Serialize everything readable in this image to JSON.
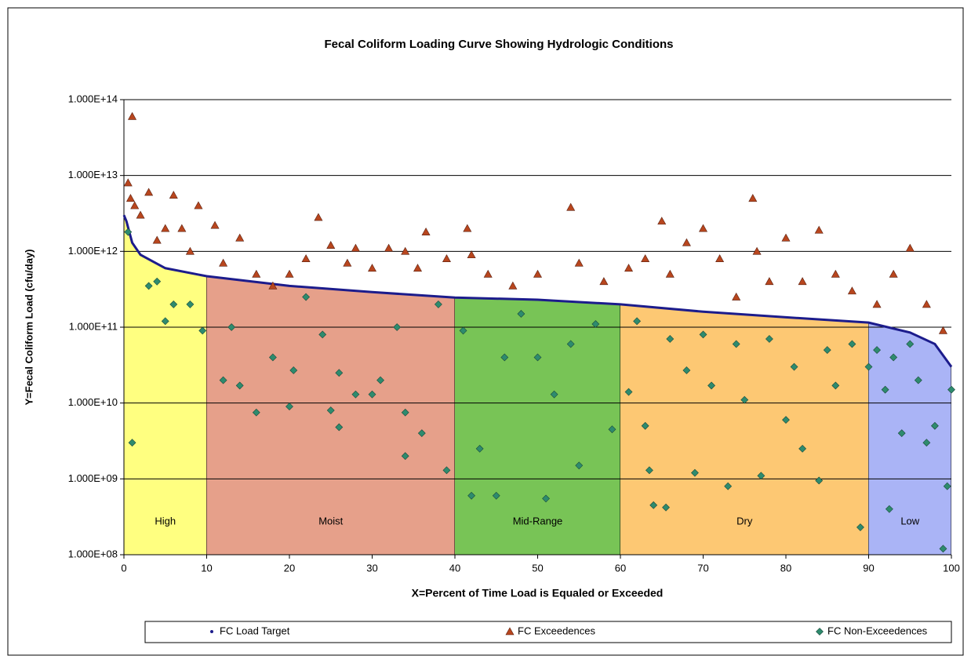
{
  "chart_data": {
    "type": "scatter",
    "title": "Fecal Coliform Loading Curve Showing Hydrologic Conditions",
    "x_label": "X=Percent of Time Load is Equaled or Exceeded",
    "y_label": "Y=Fecal Coliform Load (cfu/day)",
    "log_y": true,
    "grid": true,
    "legend": "bottom",
    "xlim": [
      0,
      100
    ],
    "ylim": [
      100000000.0,
      100000000000000.0
    ],
    "xticks": [
      0,
      10,
      20,
      30,
      40,
      50,
      60,
      70,
      80,
      90,
      100
    ],
    "yticks": [
      {
        "value": 100000000.0,
        "label": "1.000E+08"
      },
      {
        "value": 1000000000.0,
        "label": "1.000E+09"
      },
      {
        "value": 10000000000.0,
        "label": "1.000E+10"
      },
      {
        "value": 100000000000.0,
        "label": "1.000E+11"
      },
      {
        "value": 1000000000000.0,
        "label": "1.000E+12"
      },
      {
        "value": 10000000000000.0,
        "label": "1.000E+13"
      },
      {
        "value": 100000000000000.0,
        "label": "1.000E+14"
      }
    ],
    "regions": [
      {
        "label": "High",
        "x": [
          0,
          10
        ],
        "color": "#ffff80"
      },
      {
        "label": "Moist",
        "x": [
          10,
          40
        ],
        "color": "#e6a08a"
      },
      {
        "label": "Mid-Range",
        "x": [
          40,
          60
        ],
        "color": "#78c456"
      },
      {
        "label": "Dry",
        "x": [
          60,
          90
        ],
        "color": "#fdc873"
      },
      {
        "label": "Low",
        "x": [
          90,
          100
        ],
        "color": "#aab4f6"
      }
    ],
    "series": [
      {
        "name": "FC Load Target",
        "color": "#1c1c8c",
        "marker": "line",
        "x": [
          0,
          0.3,
          1,
          2,
          5,
          10,
          20,
          30,
          40,
          50,
          60,
          70,
          80,
          90,
          95,
          98,
          100
        ],
        "values": [
          3000000000000.0,
          2500000000000.0,
          1300000000000.0,
          900000000000.0,
          600000000000.0,
          470000000000.0,
          350000000000.0,
          290000000000.0,
          246000000000.0,
          230000000000.0,
          200000000000.0,
          160000000000.0,
          135000000000.0,
          115000000000.0,
          85000000000.0,
          60000000000.0,
          30000000000.0
        ]
      },
      {
        "name": "FC Exceedences",
        "color": "#b8461e",
        "marker": "triangle",
        "x": [
          0.5,
          0.8,
          1,
          1.3,
          2,
          3,
          4,
          5,
          6,
          7,
          8,
          9,
          11,
          12,
          14,
          16,
          18,
          20,
          22,
          23.5,
          25,
          27,
          28,
          30,
          32,
          34,
          35.5,
          36.5,
          39,
          41.5,
          42,
          44,
          47,
          50,
          54,
          55,
          58,
          61,
          63,
          65,
          66,
          68,
          70,
          72,
          74,
          76,
          76.5,
          78,
          80,
          82,
          84,
          86,
          88,
          91,
          93,
          95,
          97,
          99
        ],
        "values": [
          8000000000000.0,
          5000000000000.0,
          60000000000000.0,
          4000000000000.0,
          3000000000000.0,
          6000000000000.0,
          1400000000000.0,
          2000000000000.0,
          5500000000000.0,
          2000000000000.0,
          1000000000000.0,
          4000000000000.0,
          2200000000000.0,
          700000000000.0,
          1500000000000.0,
          500000000000.0,
          350000000000.0,
          500000000000.0,
          800000000000.0,
          2800000000000.0,
          1200000000000.0,
          700000000000.0,
          1100000000000.0,
          600000000000.0,
          1100000000000.0,
          1000000000000.0,
          600000000000.0,
          1800000000000.0,
          800000000000.0,
          2000000000000.0,
          900000000000.0,
          500000000000.0,
          350000000000.0,
          500000000000.0,
          3800000000000.0,
          700000000000.0,
          400000000000.0,
          600000000000.0,
          800000000000.0,
          2500000000000.0,
          500000000000.0,
          1300000000000.0,
          2000000000000.0,
          800000000000.0,
          250000000000.0,
          5000000000000.0,
          1000000000000.0,
          400000000000.0,
          1500000000000.0,
          400000000000.0,
          1900000000000.0,
          500000000000.0,
          300000000000.0,
          200000000000.0,
          500000000000.0,
          1100000000000.0,
          200000000000.0,
          90000000000.0
        ]
      },
      {
        "name": "FC Non-Exceedences",
        "color": "#2e8b6e",
        "marker": "diamond",
        "x": [
          0.5,
          1,
          3,
          4,
          5,
          6,
          8,
          9.5,
          12,
          13,
          14,
          16,
          18,
          20,
          20.5,
          22,
          24,
          25,
          26,
          26,
          28,
          30,
          31,
          33,
          34,
          34,
          36,
          38,
          39,
          41,
          42,
          43,
          45,
          46,
          48,
          50,
          51,
          52,
          54,
          55,
          57,
          59,
          61,
          62,
          63,
          63.5,
          64,
          65.5,
          66,
          68,
          69,
          70,
          71,
          73,
          74,
          75,
          77,
          78,
          80,
          81,
          82,
          84,
          85,
          86,
          88,
          89,
          90,
          91,
          92,
          92.5,
          93,
          94,
          95,
          96,
          97,
          98,
          99,
          99.5,
          100
        ],
        "values": [
          1800000000000.0,
          3000000000.0,
          350000000000.0,
          400000000000.0,
          120000000000.0,
          200000000000.0,
          200000000000.0,
          90000000000.0,
          20000000000.0,
          100000000000.0,
          17000000000.0,
          7500000000.0,
          40000000000.0,
          9000000000.0,
          27000000000.0,
          250000000000.0,
          80000000000.0,
          8000000000.0,
          25000000000.0,
          4800000000.0,
          13000000000.0,
          13000000000.0,
          20000000000.0,
          100000000000.0,
          2000000000.0,
          7500000000.0,
          4000000000.0,
          200000000000.0,
          1300000000.0,
          90000000000.0,
          600000000.0,
          2500000000.0,
          600000000.0,
          40000000000.0,
          150000000000.0,
          40000000000.0,
          550000000.0,
          13000000000.0,
          60000000000.0,
          1500000000.0,
          110000000000.0,
          4500000000.0,
          14000000000.0,
          120000000000.0,
          5000000000.0,
          1300000000.0,
          450000000.0,
          420000000.0,
          70000000000.0,
          27000000000.0,
          1200000000.0,
          80000000000.0,
          17000000000.0,
          800000000.0,
          60000000000.0,
          11000000000.0,
          1100000000.0,
          70000000000.0,
          6000000000.0,
          30000000000.0,
          2500000000.0,
          950000000.0,
          50000000000.0,
          17000000000.0,
          60000000000.0,
          230000000.0,
          30000000000.0,
          50000000000.0,
          15000000000.0,
          400000000.0,
          40000000000.0,
          4000000000.0,
          60000000000.0,
          20000000000.0,
          3000000000.0,
          5000000000.0,
          120000000.0,
          800000000.0,
          15000000000.0
        ]
      }
    ]
  }
}
